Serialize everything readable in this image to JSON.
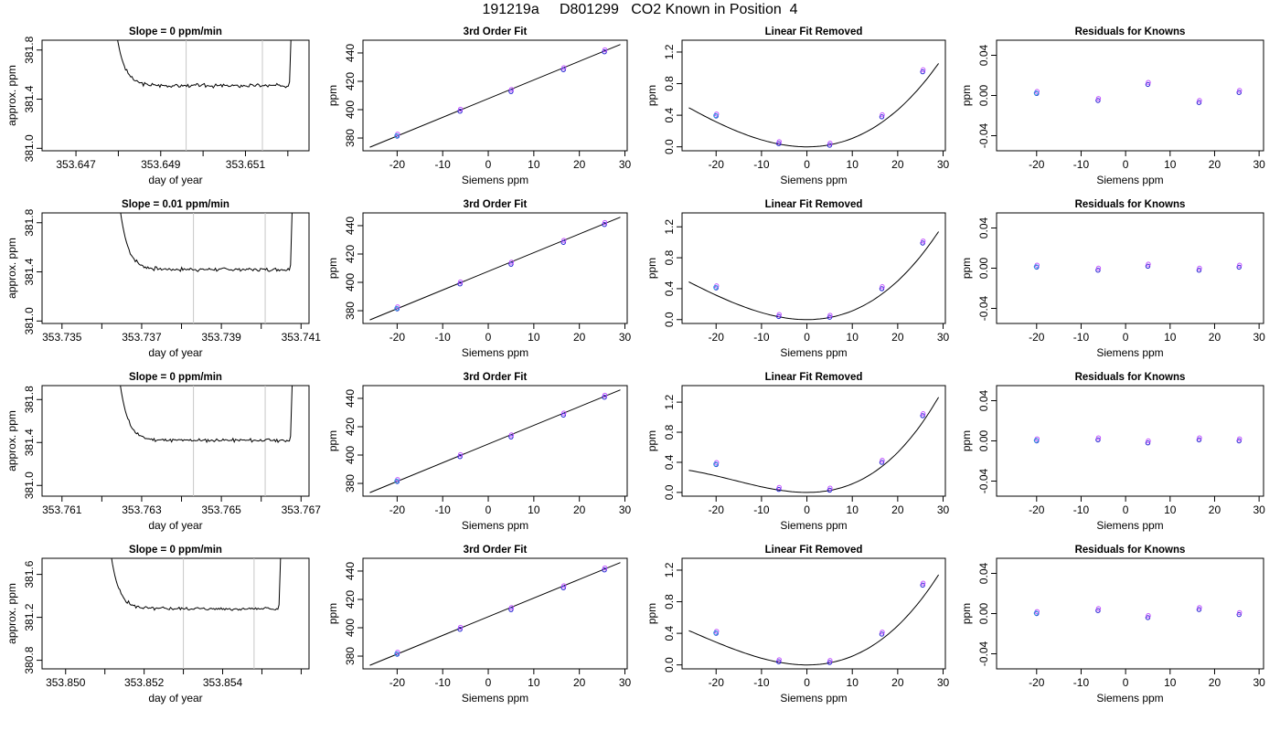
{
  "page_title": "191219a     D801299   CO2 Known in Position  4",
  "chart_data": [
    {
      "type": "line",
      "title": "Slope =  0  ppm/min",
      "xlabel": "day of year",
      "ylabel": "approx. ppm",
      "xlim": [
        353.6462,
        353.6525
      ],
      "ylim": [
        380.98,
        381.88
      ],
      "x_ticks": [
        353.647,
        353.648,
        353.649,
        353.65,
        353.651,
        353.652
      ],
      "x_tick_labels": [
        "353.647",
        "",
        "353.649",
        "",
        "353.651",
        ""
      ],
      "y_ticks": [
        381.0,
        381.4,
        381.8
      ],
      "y_tick_labels": [
        "381.0",
        "381.4",
        "381.8"
      ],
      "vlines": [
        353.6496,
        353.6514
      ],
      "shape": {
        "x0": 353.6479,
        "x1": 353.6521,
        "plateau": 381.51,
        "noise": 0.012,
        "seed": 3,
        "curve_x": 353.6479,
        "rise_x": 353.6521
      }
    },
    {
      "type": "scatter",
      "title": "3rd Order Fit",
      "xlabel": "Siemens ppm",
      "ylabel": "ppm",
      "xlim": [
        -27.5,
        30.5
      ],
      "ylim": [
        371,
        449
      ],
      "x_ticks": [
        -20,
        -10,
        0,
        10,
        20,
        30
      ],
      "y_ticks": [
        380,
        400,
        420,
        440
      ],
      "points_x": [
        -20,
        -6.2,
        5,
        16.5,
        25.5
      ],
      "points_y": [
        381.3,
        398.9,
        412.8,
        428.2,
        440.8
      ],
      "line": [
        [
          -26,
          373.5
        ],
        [
          29,
          446
        ]
      ]
    },
    {
      "type": "scatter",
      "title": "Linear Fit Removed",
      "xlabel": "Siemens ppm",
      "ylabel": "ppm",
      "xlim": [
        -27.5,
        30.5
      ],
      "ylim": [
        -0.05,
        1.35
      ],
      "x_ticks": [
        -20,
        -10,
        0,
        10,
        20,
        30
      ],
      "y_ticks": [
        0.0,
        0.4,
        0.8,
        1.2
      ],
      "y_tick_labels": [
        "0.0",
        "0.4",
        "0.8",
        "1.2"
      ],
      "points_x": [
        -20,
        -6.2,
        5,
        16.5,
        25.5
      ],
      "points_y": [
        0.39,
        0.04,
        0.02,
        0.38,
        0.95
      ],
      "curve": {
        "a": 0.00098,
        "b": 9.5e-06,
        "c": 0,
        "from": -26,
        "to": 29
      }
    },
    {
      "type": "scatter",
      "title": "Residuals for Knowns",
      "xlabel": "Siemens ppm",
      "ylabel": "ppm",
      "xlim": [
        -29,
        31
      ],
      "ylim": [
        -0.055,
        0.055
      ],
      "x_ticks": [
        -20,
        -10,
        0,
        10,
        20,
        30
      ],
      "y_ticks": [
        -0.04,
        0.0,
        0.04
      ],
      "y_tick_labels": [
        "-0.04",
        "0.00",
        "0.04"
      ],
      "points_x": [
        -20,
        -6.2,
        5,
        16.5,
        25.5
      ],
      "points_y": [
        0.002,
        -0.005,
        0.011,
        -0.007,
        0.003
      ]
    },
    {
      "type": "line",
      "title": "Slope =  0.01  ppm/min",
      "xlabel": "day of year",
      "ylabel": "approx. ppm",
      "xlim": [
        353.7345,
        353.7412
      ],
      "ylim": [
        380.98,
        381.88
      ],
      "x_ticks": [
        353.735,
        353.736,
        353.737,
        353.738,
        353.739,
        353.74,
        353.741
      ],
      "x_tick_labels": [
        "353.735",
        "",
        "353.737",
        "",
        "353.739",
        "",
        "353.741"
      ],
      "y_ticks": [
        381.0,
        381.4,
        381.8
      ],
      "y_tick_labels": [
        "381.0",
        "381.4",
        "381.8"
      ],
      "vlines": [
        353.7383,
        353.7401
      ],
      "shape": {
        "x0": 353.7364,
        "x1": 353.7408,
        "plateau": 381.42,
        "noise": 0.012,
        "seed": 7,
        "curve_x": 353.7364,
        "rise_x": 353.7408
      }
    },
    {
      "type": "scatter",
      "title": "3rd Order Fit",
      "xlabel": "Siemens ppm",
      "ylabel": "ppm",
      "xlim": [
        -27.5,
        30.5
      ],
      "ylim": [
        371,
        449
      ],
      "x_ticks": [
        -20,
        -10,
        0,
        10,
        20,
        30
      ],
      "y_ticks": [
        380,
        400,
        420,
        440
      ],
      "points_x": [
        -20,
        -6.2,
        5,
        16.5,
        25.5
      ],
      "points_y": [
        381.3,
        398.9,
        412.8,
        428.2,
        440.8
      ],
      "line": [
        [
          -26,
          373.5
        ],
        [
          29,
          446
        ]
      ]
    },
    {
      "type": "scatter",
      "title": "Linear Fit Removed",
      "xlabel": "Siemens ppm",
      "ylabel": "ppm",
      "xlim": [
        -27.5,
        30.5
      ],
      "ylim": [
        -0.05,
        1.38
      ],
      "x_ticks": [
        -20,
        -10,
        0,
        10,
        20,
        30
      ],
      "y_ticks": [
        0.0,
        0.4,
        0.8,
        1.2
      ],
      "y_tick_labels": [
        "0.0",
        "0.4",
        "0.8",
        "1.2"
      ],
      "points_x": [
        -20,
        -6.2,
        5,
        16.5,
        25.5
      ],
      "points_y": [
        0.41,
        0.04,
        0.03,
        0.4,
        0.99
      ],
      "curve": {
        "a": 0.00102,
        "b": 1.15e-05,
        "c": 0,
        "from": -26,
        "to": 29
      }
    },
    {
      "type": "scatter",
      "title": "Residuals for Knowns",
      "xlabel": "Siemens ppm",
      "ylabel": "ppm",
      "xlim": [
        -29,
        31
      ],
      "ylim": [
        -0.055,
        0.055
      ],
      "x_ticks": [
        -20,
        -10,
        0,
        10,
        20,
        30
      ],
      "y_ticks": [
        -0.04,
        0.0,
        0.04
      ],
      "y_tick_labels": [
        "-0.04",
        "0.00",
        "0.04"
      ],
      "points_x": [
        -20,
        -6.2,
        5,
        16.5,
        25.5
      ],
      "points_y": [
        0.001,
        -0.002,
        0.002,
        -0.002,
        0.001
      ]
    },
    {
      "type": "line",
      "title": "Slope =  0  ppm/min",
      "xlabel": "day of year",
      "ylabel": "approx. ppm",
      "xlim": [
        353.7605,
        353.7672
      ],
      "ylim": [
        380.9,
        381.93
      ],
      "x_ticks": [
        353.761,
        353.762,
        353.763,
        353.764,
        353.765,
        353.766,
        353.767
      ],
      "x_tick_labels": [
        "353.761",
        "",
        "353.763",
        "",
        "353.765",
        "",
        "353.767"
      ],
      "y_ticks": [
        381.0,
        381.4,
        381.8
      ],
      "y_tick_labels": [
        "381.0",
        "381.4",
        "381.8"
      ],
      "vlines": [
        353.7643,
        353.7661
      ],
      "shape": {
        "x0": 353.7624,
        "x1": 353.7668,
        "plateau": 381.42,
        "noise": 0.012,
        "seed": 11,
        "curve_x": 353.7624,
        "rise_x": 353.7668
      }
    },
    {
      "type": "scatter",
      "title": "3rd Order Fit",
      "xlabel": "Siemens ppm",
      "ylabel": "ppm",
      "xlim": [
        -27.5,
        30.5
      ],
      "ylim": [
        371,
        449
      ],
      "x_ticks": [
        -20,
        -10,
        0,
        10,
        20,
        30
      ],
      "y_ticks": [
        380,
        400,
        420,
        440
      ],
      "points_x": [
        -20,
        -6.2,
        5,
        16.5,
        25.5
      ],
      "points_y": [
        381.3,
        398.9,
        412.8,
        428.2,
        440.8
      ],
      "line": [
        [
          -26,
          373.5
        ],
        [
          29,
          446
        ]
      ]
    },
    {
      "type": "scatter",
      "title": "Linear Fit Removed",
      "xlabel": "Siemens ppm",
      "ylabel": "ppm",
      "xlim": [
        -27.5,
        30.5
      ],
      "ylim": [
        -0.05,
        1.42
      ],
      "x_ticks": [
        -20,
        -10,
        0,
        10,
        20,
        30
      ],
      "y_ticks": [
        0.0,
        0.4,
        0.8,
        1.2
      ],
      "y_tick_labels": [
        "0.0",
        "0.4",
        "0.8",
        "1.2"
      ],
      "points_x": [
        -20,
        -6.2,
        5,
        16.5,
        25.5
      ],
      "points_y": [
        0.37,
        0.04,
        0.03,
        0.4,
        1.02
      ],
      "curve": {
        "a": 0.00094,
        "b": 1.95e-05,
        "c": 0,
        "from": -26,
        "to": 29
      }
    },
    {
      "type": "scatter",
      "title": "Residuals for Knowns",
      "xlabel": "Siemens ppm",
      "ylabel": "ppm",
      "xlim": [
        -29,
        31
      ],
      "ylim": [
        -0.055,
        0.055
      ],
      "x_ticks": [
        -20,
        -10,
        0,
        10,
        20,
        30
      ],
      "y_ticks": [
        -0.04,
        0.0,
        0.04
      ],
      "y_tick_labels": [
        "-0.04",
        "0.00",
        "0.04"
      ],
      "points_x": [
        -20,
        -6.2,
        5,
        16.5,
        25.5
      ],
      "points_y": [
        0.0,
        0.001,
        -0.002,
        0.001,
        0.0
      ]
    },
    {
      "type": "line",
      "title": "Slope =  0  ppm/min",
      "xlabel": "day of year",
      "ylabel": "approx. ppm",
      "xlim": [
        353.8494,
        353.8562
      ],
      "ylim": [
        380.72,
        381.75
      ],
      "x_ticks": [
        353.85,
        353.851,
        353.852,
        353.853,
        353.854,
        353.855,
        353.856
      ],
      "x_tick_labels": [
        "353.850",
        "",
        "353.852",
        "",
        "353.854",
        "",
        ""
      ],
      "y_ticks": [
        380.8,
        381.2,
        381.6
      ],
      "y_tick_labels": [
        "380.8",
        "381.2",
        "381.6"
      ],
      "vlines": [
        353.853,
        353.8548
      ],
      "shape": {
        "x0": 353.8511,
        "x1": 353.8555,
        "plateau": 381.28,
        "noise": 0.012,
        "seed": 5,
        "curve_x": 353.8511,
        "rise_x": 353.8555
      }
    },
    {
      "type": "scatter",
      "title": "3rd Order Fit",
      "xlabel": "Siemens ppm",
      "ylabel": "ppm",
      "xlim": [
        -27.5,
        30.5
      ],
      "ylim": [
        371,
        449
      ],
      "x_ticks": [
        -20,
        -10,
        0,
        10,
        20,
        30
      ],
      "y_ticks": [
        380,
        400,
        420,
        440
      ],
      "points_x": [
        -20,
        -6.2,
        5,
        16.5,
        25.5
      ],
      "points_y": [
        381.3,
        398.9,
        412.8,
        428.2,
        440.8
      ],
      "line": [
        [
          -26,
          373.5
        ],
        [
          29,
          446
        ]
      ]
    },
    {
      "type": "scatter",
      "title": "Linear Fit Removed",
      "xlabel": "Siemens ppm",
      "ylabel": "ppm",
      "xlim": [
        -27.5,
        30.5
      ],
      "ylim": [
        -0.05,
        1.35
      ],
      "x_ticks": [
        -20,
        -10,
        0,
        10,
        20,
        30
      ],
      "y_ticks": [
        0.0,
        0.4,
        0.8,
        1.2
      ],
      "y_tick_labels": [
        "0.0",
        "0.4",
        "0.8",
        "1.2"
      ],
      "points_x": [
        -20,
        -6.2,
        5,
        16.5,
        25.5
      ],
      "points_y": [
        0.4,
        0.04,
        0.03,
        0.39,
        1.01
      ],
      "curve": {
        "a": 0.00098,
        "b": 1.3e-05,
        "c": 0,
        "from": -26,
        "to": 29
      }
    },
    {
      "type": "scatter",
      "title": "Residuals for Knowns",
      "xlabel": "Siemens ppm",
      "ylabel": "ppm",
      "xlim": [
        -29,
        31
      ],
      "ylim": [
        -0.055,
        0.055
      ],
      "x_ticks": [
        -20,
        -10,
        0,
        10,
        20,
        30
      ],
      "y_ticks": [
        -0.04,
        0.0,
        0.04
      ],
      "y_tick_labels": [
        "-0.04",
        "0.00",
        "0.04"
      ],
      "points_x": [
        -20,
        -6.2,
        5,
        16.5,
        25.5
      ],
      "points_y": [
        0.0,
        0.003,
        -0.004,
        0.004,
        -0.001
      ]
    }
  ]
}
